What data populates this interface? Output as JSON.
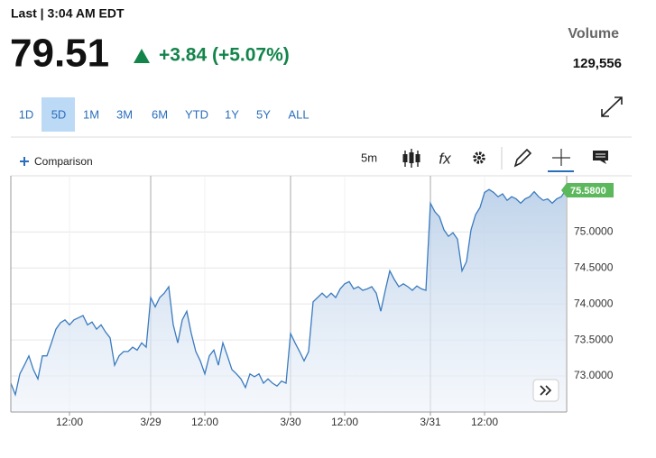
{
  "header": {
    "last_label": "Last | 3:04 AM EDT",
    "price": "79.51",
    "change": "+3.84 (+5.07%)",
    "volume_label": "Volume",
    "volume": "129,556"
  },
  "range_buttons": [
    "1D",
    "5D",
    "1M",
    "3M",
    "6M",
    "YTD",
    "1Y",
    "5Y",
    "ALL"
  ],
  "selected_range_index": 1,
  "toolbar": {
    "comparison": "Comparison",
    "interval": "5m",
    "studies": "fx"
  },
  "chart_data": {
    "type": "area",
    "color": "#3b7bbf",
    "values": [
      72.9,
      72.74,
      73.03,
      73.15,
      73.28,
      73.09,
      72.96,
      73.28,
      73.28,
      73.46,
      73.65,
      73.74,
      73.78,
      73.71,
      73.78,
      73.81,
      73.84,
      73.71,
      73.75,
      73.65,
      73.71,
      73.61,
      73.53,
      73.15,
      73.28,
      73.34,
      73.34,
      73.4,
      73.36,
      73.46,
      73.4,
      74.09,
      73.96,
      74.09,
      74.15,
      74.24,
      73.71,
      73.46,
      73.78,
      73.9,
      73.59,
      73.34,
      73.21,
      73.03,
      73.28,
      73.36,
      73.15,
      73.46,
      73.28,
      73.09,
      73.03,
      72.96,
      72.84,
      73.03,
      72.99,
      73.03,
      72.9,
      72.96,
      72.9,
      72.86,
      72.93,
      72.9,
      73.59,
      73.46,
      73.34,
      73.21,
      73.34,
      74.03,
      74.09,
      74.15,
      74.09,
      74.15,
      74.09,
      74.21,
      74.28,
      74.31,
      74.21,
      74.24,
      74.19,
      74.21,
      74.24,
      74.15,
      73.9,
      74.19,
      74.46,
      74.34,
      74.24,
      74.28,
      74.24,
      74.19,
      74.25,
      74.21,
      74.19,
      75.4,
      75.28,
      75.21,
      75.03,
      74.94,
      74.99,
      74.9,
      74.46,
      74.59,
      75.03,
      75.24,
      75.34,
      75.55,
      75.59,
      75.55,
      75.49,
      75.53,
      75.44,
      75.49,
      75.46,
      75.4,
      75.46,
      75.49,
      75.56,
      75.49,
      75.44,
      75.46,
      75.4,
      75.46,
      75.49,
      75.58
    ],
    "xlim": [
      0,
      123
    ],
    "xticks": [
      {
        "value": 13,
        "label": "12:00"
      },
      {
        "value": 31,
        "label": "3/29"
      },
      {
        "value": 43,
        "label": "12:00"
      },
      {
        "value": 62,
        "label": "3/30"
      },
      {
        "value": 74,
        "label": "12:00"
      },
      {
        "value": 93,
        "label": "3/31"
      },
      {
        "value": 105,
        "label": "12:00"
      }
    ],
    "ylim": [
      72.5,
      75.78
    ],
    "yticks": [
      {
        "value": 73,
        "label": "73.0000"
      },
      {
        "value": 73.5,
        "label": "73.5000"
      },
      {
        "value": 74,
        "label": "74.0000"
      },
      {
        "value": 74.5,
        "label": "74.5000"
      },
      {
        "value": 75,
        "label": "75.0000"
      }
    ],
    "grid": true,
    "last_price": {
      "value": 75.58,
      "label": "75.5800",
      "color": "#5cb85c"
    }
  }
}
